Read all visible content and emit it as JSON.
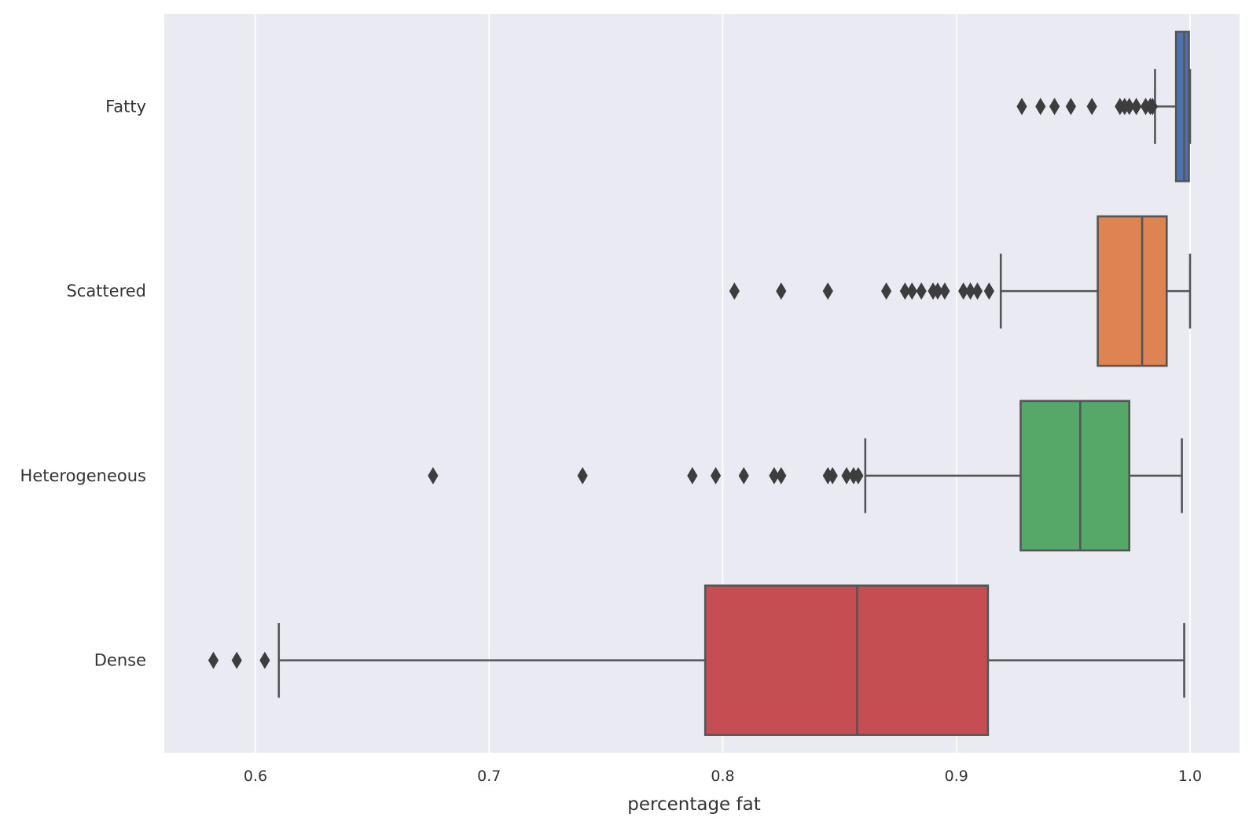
{
  "chart_data": {
    "type": "boxplot",
    "orientation": "horizontal",
    "title": "",
    "xlabel": "percentage fat",
    "ylabel": "",
    "xlim": [
      0.5625,
      1.0205
    ],
    "xticks": [
      0.6,
      0.7,
      0.8,
      0.9,
      1.0
    ],
    "xtick_labels": [
      "0.6",
      "0.7",
      "0.8",
      "0.9",
      "1.0"
    ],
    "grid": "vertical, white lines",
    "background": "#eaeaf2",
    "categories": [
      "Fatty",
      "Scattered",
      "Heterogeneous",
      "Dense"
    ],
    "boxes": [
      {
        "category": "Fatty",
        "color": "#4c72b0",
        "whisker_low": 0.985,
        "q1": 0.994,
        "median": 0.9975,
        "q3": 0.9995,
        "whisker_high": 1.0,
        "outliers": [
          0.928,
          0.936,
          0.942,
          0.949,
          0.958,
          0.97,
          0.972,
          0.974,
          0.977,
          0.981,
          0.983,
          0.984
        ]
      },
      {
        "category": "Scattered",
        "color": "#dd8452",
        "whisker_low": 0.919,
        "q1": 0.9605,
        "median": 0.9795,
        "q3": 0.99,
        "whisker_high": 1.0,
        "outliers": [
          0.805,
          0.825,
          0.845,
          0.87,
          0.878,
          0.881,
          0.885,
          0.89,
          0.892,
          0.895,
          0.903,
          0.906,
          0.909,
          0.914
        ]
      },
      {
        "category": "Heterogeneous",
        "color": "#55a868",
        "whisker_low": 0.861,
        "q1": 0.9275,
        "median": 0.953,
        "q3": 0.974,
        "whisker_high": 0.9965,
        "outliers": [
          0.676,
          0.74,
          0.787,
          0.797,
          0.809,
          0.822,
          0.825,
          0.845,
          0.847,
          0.853,
          0.856,
          0.858
        ]
      },
      {
        "category": "Dense",
        "color": "#c44e52",
        "whisker_low": 0.61,
        "q1": 0.7925,
        "median": 0.8575,
        "q3": 0.9135,
        "whisker_high": 0.9975,
        "outliers": [
          0.582,
          0.592,
          0.604
        ]
      }
    ]
  }
}
